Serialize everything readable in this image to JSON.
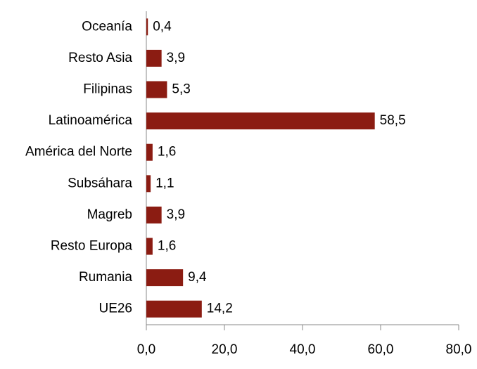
{
  "chart_data": {
    "type": "hbar",
    "categories": [
      "Oceanía",
      "Resto Asia",
      "Filipinas",
      "Latinoamérica",
      "América del Norte",
      "Subsáhara",
      "Magreb",
      "Resto Europa",
      "Rumania",
      "UE26"
    ],
    "values": [
      0.4,
      3.9,
      5.3,
      58.5,
      1.6,
      1.1,
      3.9,
      1.6,
      9.4,
      14.2
    ],
    "value_labels": [
      "0,4",
      "3,9",
      "5,3",
      "58,5",
      "1,6",
      "1,1",
      "3,9",
      "1,6",
      "9,4",
      "14,2"
    ],
    "color": "#8b1c12",
    "xlim": [
      0,
      80
    ],
    "xticks": [
      {
        "value": 0,
        "label": "0,0"
      },
      {
        "value": 20,
        "label": "20,0"
      },
      {
        "value": 40,
        "label": "40,0"
      },
      {
        "value": 60,
        "label": "60,0"
      },
      {
        "value": 80,
        "label": "80,0"
      }
    ]
  }
}
